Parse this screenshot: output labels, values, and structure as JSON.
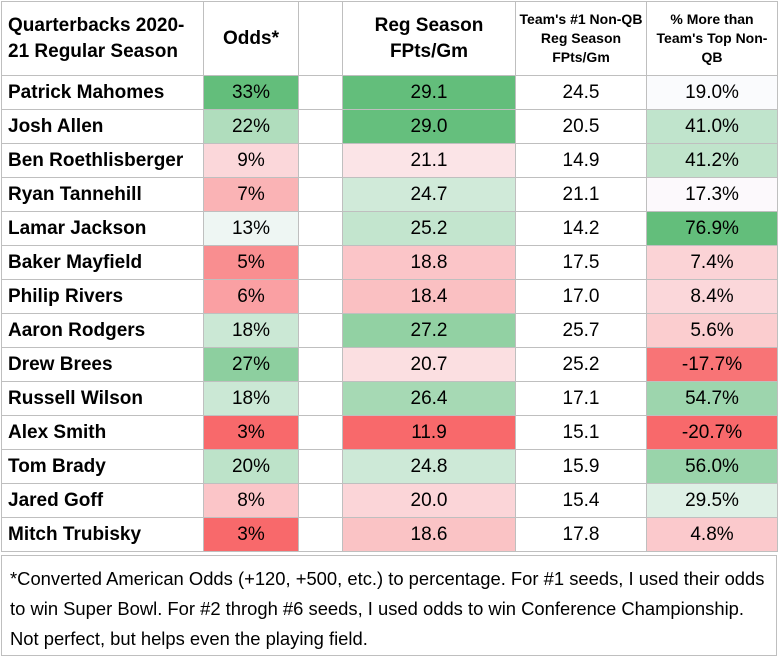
{
  "headers": {
    "name": "Quarterbacks 2020-21 Regular Season",
    "odds": "Odds*",
    "reg": "Reg Season FPts/Gm",
    "nonqb": "Team's #1 Non-QB Reg Season FPts/Gm",
    "pct": "% More than Team's Top Non-QB"
  },
  "chart_data": {
    "type": "table",
    "columns": [
      "Quarterbacks 2020-21 Regular Season",
      "Odds*",
      "Reg Season FPts/Gm",
      "Team's #1 Non-QB Reg Season FPts/Gm",
      "% More than Team's Top Non-QB"
    ],
    "rows": [
      {
        "name": "Patrick Mahomes",
        "odds": "33%",
        "reg": "29.1",
        "nonqb": "24.5",
        "pct": "19.0%"
      },
      {
        "name": "Josh Allen",
        "odds": "22%",
        "reg": "29.0",
        "nonqb": "20.5",
        "pct": "41.0%"
      },
      {
        "name": "Ben Roethlisberger",
        "odds": "9%",
        "reg": "21.1",
        "nonqb": "14.9",
        "pct": "41.2%"
      },
      {
        "name": "Ryan Tannehill",
        "odds": "7%",
        "reg": "24.7",
        "nonqb": "21.1",
        "pct": "17.3%"
      },
      {
        "name": "Lamar Jackson",
        "odds": "13%",
        "reg": "25.2",
        "nonqb": "14.2",
        "pct": "76.9%"
      },
      {
        "name": "Baker Mayfield",
        "odds": "5%",
        "reg": "18.8",
        "nonqb": "17.5",
        "pct": "7.4%"
      },
      {
        "name": "Philip Rivers",
        "odds": "6%",
        "reg": "18.4",
        "nonqb": "17.0",
        "pct": "8.4%"
      },
      {
        "name": "Aaron Rodgers",
        "odds": "18%",
        "reg": "27.2",
        "nonqb": "25.7",
        "pct": "5.6%"
      },
      {
        "name": "Drew Brees",
        "odds": "27%",
        "reg": "20.7",
        "nonqb": "25.2",
        "pct": "-17.7%"
      },
      {
        "name": "Russell Wilson",
        "odds": "18%",
        "reg": "26.4",
        "nonqb": "17.1",
        "pct": "54.7%"
      },
      {
        "name": "Alex Smith",
        "odds": "3%",
        "reg": "11.9",
        "nonqb": "15.1",
        "pct": "-20.7%"
      },
      {
        "name": "Tom Brady",
        "odds": "20%",
        "reg": "24.8",
        "nonqb": "15.9",
        "pct": "56.0%"
      },
      {
        "name": "Jared Goff",
        "odds": "8%",
        "reg": "20.0",
        "nonqb": "15.4",
        "pct": "29.5%"
      },
      {
        "name": "Mitch Trubisky",
        "odds": "3%",
        "reg": "18.6",
        "nonqb": "17.8",
        "pct": "4.8%"
      }
    ],
    "color_scale": {
      "low": "#f8696b",
      "mid": "#fcfcff",
      "high": "#63be7b"
    },
    "colored_columns": [
      "odds",
      "reg",
      "pct"
    ]
  },
  "footnote": "*Converted American Odds (+120, +500, etc.) to percentage. For #1 seeds, I used their odds to win Super Bowl. For #2 throgh #6 seeds, I used odds to win Conference Championship. Not perfect, but helps even the playing field."
}
